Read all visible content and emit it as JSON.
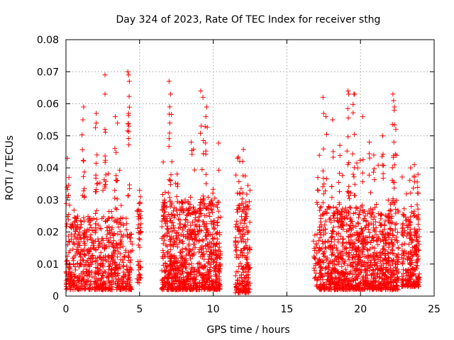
{
  "chart_data": {
    "type": "scatter",
    "title": "Day 324 of 2023, Rate Of TEC Index for receiver sthg",
    "xlabel": "GPS time / hours",
    "ylabel": "ROTI / TECUs",
    "xlim": [
      0,
      25
    ],
    "ylim": [
      0,
      0.08
    ],
    "x_ticks": [
      0,
      5,
      10,
      15,
      20,
      25
    ],
    "x_tick_labels": [
      "0",
      "5",
      "10",
      "15",
      "20",
      "25"
    ],
    "y_ticks": [
      0,
      0.01,
      0.02,
      0.03,
      0.04,
      0.05,
      0.06,
      0.07,
      0.08
    ],
    "y_tick_labels": [
      "0",
      "0.01",
      "0.02",
      "0.03",
      "0.04",
      "0.05",
      "0.06",
      "0.07",
      "0.08"
    ],
    "grid": true,
    "marker": "+",
    "series": [
      {
        "name": "ROTI",
        "color": "#ff0000",
        "segments": [
          {
            "x_range": [
              0.0,
              4.5
            ],
            "y_base": [
              0.002,
              0.025
            ],
            "n": 700
          },
          {
            "x_range": [
              4.8,
              5.1
            ],
            "y_base": [
              0.004,
              0.03
            ],
            "n": 40
          },
          {
            "x_range": [
              6.5,
              10.5
            ],
            "y_base": [
              0.002,
              0.03
            ],
            "n": 900
          },
          {
            "x_range": [
              11.5,
              12.5
            ],
            "y_base": [
              0.001,
              0.03
            ],
            "n": 200
          },
          {
            "x_range": [
              16.8,
              17.2
            ],
            "y_base": [
              0.003,
              0.02
            ],
            "n": 30
          },
          {
            "x_range": [
              17.2,
              22.6
            ],
            "y_base": [
              0.002,
              0.028
            ],
            "n": 1100
          },
          {
            "x_range": [
              22.8,
              24.0
            ],
            "y_base": [
              0.003,
              0.025
            ],
            "n": 240
          }
        ],
        "peaks": [
          [
            2.65,
            0.069
          ],
          [
            4.2,
            0.07
          ],
          [
            4.25,
            0.069
          ],
          [
            4.3,
            0.067
          ],
          [
            1.2,
            0.059
          ],
          [
            1.15,
            0.055
          ],
          [
            2.05,
            0.057
          ],
          [
            2.05,
            0.054
          ],
          [
            2.65,
            0.063
          ],
          [
            3.35,
            0.056
          ],
          [
            3.5,
            0.054
          ],
          [
            4.25,
            0.057
          ],
          [
            0.2,
            0.037
          ],
          [
            0.1,
            0.043
          ],
          [
            7.0,
            0.067
          ],
          [
            7.1,
            0.063
          ],
          [
            9.15,
            0.064
          ],
          [
            9.3,
            0.062
          ],
          [
            9.55,
            0.059
          ],
          [
            9.5,
            0.056
          ],
          [
            7.05,
            0.054
          ],
          [
            8.5,
            0.048
          ],
          [
            11.8,
            0.042
          ],
          [
            12.0,
            0.042
          ],
          [
            11.65,
            0.043
          ],
          [
            17.45,
            0.062
          ],
          [
            17.5,
            0.057
          ],
          [
            17.65,
            0.056
          ],
          [
            19.15,
            0.064
          ],
          [
            19.2,
            0.063
          ],
          [
            19.55,
            0.063
          ],
          [
            19.6,
            0.063
          ],
          [
            20.15,
            0.056
          ],
          [
            20.6,
            0.048
          ],
          [
            21.5,
            0.05
          ],
          [
            22.2,
            0.063
          ],
          [
            22.25,
            0.061
          ],
          [
            22.3,
            0.059
          ],
          [
            22.4,
            0.052
          ],
          [
            23.4,
            0.04
          ],
          [
            23.65,
            0.041
          ],
          [
            23.9,
            0.038
          ],
          [
            18.1,
            0.055
          ],
          [
            18.6,
            0.047
          ],
          [
            20.9,
            0.044
          ],
          [
            5.0,
            0.033
          ],
          [
            16.9,
            0.019
          ],
          [
            17.1,
            0.037
          ]
        ]
      }
    ]
  }
}
